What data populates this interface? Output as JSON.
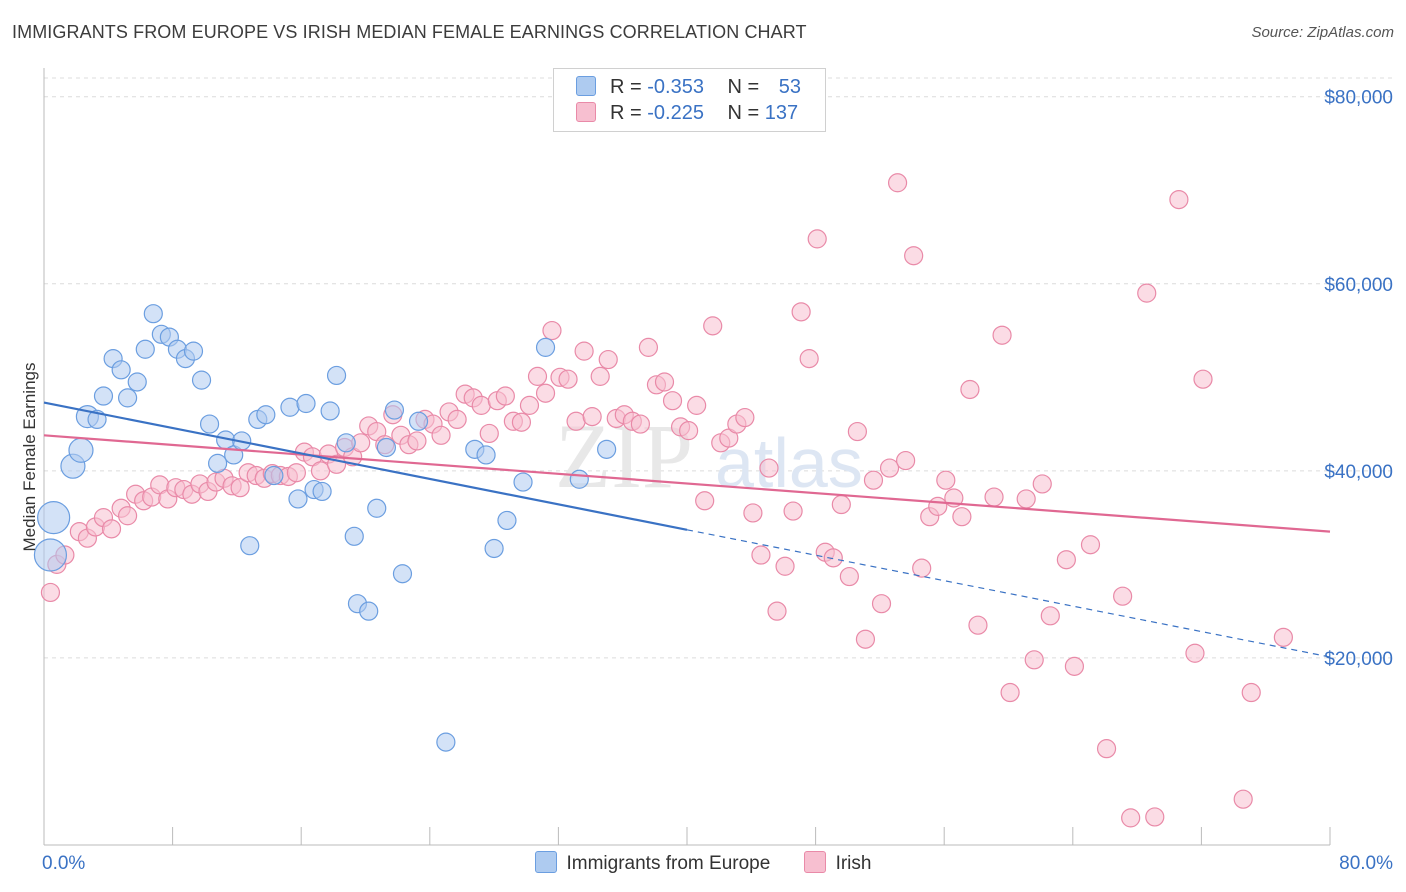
{
  "header": {
    "title": "IMMIGRANTS FROM EUROPE VS IRISH MEDIAN FEMALE EARNINGS CORRELATION CHART",
    "source": "Source: ZipAtlas.com"
  },
  "legend": {
    "rows": [
      {
        "r_label": "R =",
        "r_value": "-0.353",
        "n_label": "N =",
        "n_value": "53"
      },
      {
        "r_label": "R =",
        "r_value": "-0.225",
        "n_label": "N =",
        "n_value": "137"
      }
    ]
  },
  "colors": {
    "blue_fill": "#aecbf0",
    "blue_stroke": "#6b9ee0",
    "blue_line": "#3a72c4",
    "pink_fill": "#f7bfd0",
    "pink_stroke": "#e98aa8",
    "pink_line": "#e06892",
    "axis_label": "#3a72c4",
    "grid": "#dcdcdc"
  },
  "chart_data": {
    "type": "scatter",
    "title": "IMMIGRANTS FROM EUROPE VS IRISH MEDIAN FEMALE EARNINGS CORRELATION CHART",
    "xlabel": "",
    "ylabel": "Median Female Earnings",
    "xlim": [
      0,
      80
    ],
    "ylim": [
      0,
      82000
    ],
    "x_tick_labels": [
      "0.0%",
      "80.0%"
    ],
    "y_ticks": [
      20000,
      40000,
      60000,
      80000
    ],
    "y_tick_labels": [
      "$20,000",
      "$40,000",
      "$60,000",
      "$80,000"
    ],
    "grid": true,
    "legend_position": "top-center",
    "series": [
      {
        "name": "Immigrants from Europe",
        "color": "blue",
        "r": "-0.353",
        "n": "53",
        "trend": {
          "x0": 0,
          "y0": 47300,
          "x1": 40,
          "y1": 33700,
          "dashed_to_x": 80,
          "dashed_to_y": 20100
        },
        "points": [
          [
            0.6,
            35000,
            16
          ],
          [
            0.4,
            31000,
            16
          ],
          [
            1.8,
            40500,
            12
          ],
          [
            2.3,
            42200,
            12
          ],
          [
            2.7,
            45800,
            11
          ],
          [
            3.3,
            45500,
            9
          ],
          [
            3.7,
            48000,
            9
          ],
          [
            4.3,
            52000,
            9
          ],
          [
            4.8,
            50800,
            9
          ],
          [
            5.2,
            47800,
            9
          ],
          [
            5.8,
            49500,
            9
          ],
          [
            6.3,
            53000,
            9
          ],
          [
            6.8,
            56800,
            9
          ],
          [
            7.3,
            54600,
            9
          ],
          [
            7.8,
            54300,
            9
          ],
          [
            8.3,
            53000,
            9
          ],
          [
            8.8,
            52000,
            9
          ],
          [
            9.3,
            52800,
            9
          ],
          [
            9.8,
            49700,
            9
          ],
          [
            10.3,
            45000,
            9
          ],
          [
            10.8,
            40800,
            9
          ],
          [
            11.3,
            43300,
            9
          ],
          [
            11.8,
            41700,
            9
          ],
          [
            12.3,
            43200,
            9
          ],
          [
            12.8,
            32000,
            9
          ],
          [
            13.3,
            45500,
            9
          ],
          [
            13.8,
            46000,
            9
          ],
          [
            14.3,
            39500,
            9
          ],
          [
            15.3,
            46800,
            9
          ],
          [
            15.8,
            37000,
            9
          ],
          [
            16.3,
            47200,
            9
          ],
          [
            16.8,
            38000,
            9
          ],
          [
            17.3,
            37800,
            9
          ],
          [
            17.8,
            46400,
            9
          ],
          [
            18.2,
            50200,
            9
          ],
          [
            18.8,
            43000,
            9
          ],
          [
            19.3,
            33000,
            9
          ],
          [
            19.5,
            25800,
            9
          ],
          [
            20.2,
            25000,
            9
          ],
          [
            20.7,
            36000,
            9
          ],
          [
            21.3,
            42500,
            9
          ],
          [
            21.8,
            46500,
            9
          ],
          [
            22.3,
            29000,
            9
          ],
          [
            23.3,
            45300,
            9
          ],
          [
            25.0,
            11000,
            9
          ],
          [
            26.8,
            42300,
            9
          ],
          [
            27.5,
            41700,
            9
          ],
          [
            28.0,
            31700,
            9
          ],
          [
            28.8,
            34700,
            9
          ],
          [
            29.8,
            38800,
            9
          ],
          [
            31.2,
            53200,
            9
          ],
          [
            33.3,
            39100,
            9
          ],
          [
            35.0,
            42300,
            9
          ]
        ]
      },
      {
        "name": "Irish",
        "color": "pink",
        "r": "-0.225",
        "n": "137",
        "trend": {
          "x0": 0,
          "y0": 43800,
          "x1": 80,
          "y1": 33500
        },
        "points": [
          [
            0.4,
            27000,
            9
          ],
          [
            0.8,
            30000,
            9
          ],
          [
            1.3,
            31000,
            9
          ],
          [
            2.2,
            33500,
            9
          ],
          [
            2.7,
            32800,
            9
          ],
          [
            3.2,
            34000,
            9
          ],
          [
            3.7,
            35000,
            9
          ],
          [
            4.2,
            33800,
            9
          ],
          [
            4.8,
            36000,
            9
          ],
          [
            5.2,
            35200,
            9
          ],
          [
            5.7,
            37500,
            9
          ],
          [
            6.2,
            36800,
            9
          ],
          [
            6.7,
            37200,
            9
          ],
          [
            7.2,
            38500,
            9
          ],
          [
            7.7,
            37000,
            9
          ],
          [
            8.2,
            38200,
            9
          ],
          [
            8.7,
            38000,
            9
          ],
          [
            9.2,
            37500,
            9
          ],
          [
            9.7,
            38600,
            9
          ],
          [
            10.2,
            37800,
            9
          ],
          [
            10.7,
            38800,
            9
          ],
          [
            11.2,
            39200,
            9
          ],
          [
            11.7,
            38400,
            9
          ],
          [
            12.2,
            38200,
            9
          ],
          [
            12.7,
            39800,
            9
          ],
          [
            13.2,
            39500,
            9
          ],
          [
            13.7,
            39200,
            9
          ],
          [
            14.2,
            39700,
            9
          ],
          [
            14.7,
            39500,
            9
          ],
          [
            15.2,
            39400,
            9
          ],
          [
            15.7,
            39800,
            9
          ],
          [
            16.2,
            42000,
            9
          ],
          [
            16.7,
            41500,
            9
          ],
          [
            17.2,
            40000,
            9
          ],
          [
            17.7,
            41800,
            9
          ],
          [
            18.2,
            40700,
            9
          ],
          [
            18.7,
            42500,
            9
          ],
          [
            19.2,
            41500,
            9
          ],
          [
            19.7,
            43000,
            9
          ],
          [
            20.2,
            44800,
            9
          ],
          [
            20.7,
            44200,
            9
          ],
          [
            21.2,
            42800,
            9
          ],
          [
            21.7,
            46000,
            9
          ],
          [
            22.2,
            43800,
            9
          ],
          [
            22.7,
            42800,
            9
          ],
          [
            23.2,
            43200,
            9
          ],
          [
            23.7,
            45500,
            9
          ],
          [
            24.2,
            45000,
            9
          ],
          [
            24.7,
            43800,
            9
          ],
          [
            25.2,
            46300,
            9
          ],
          [
            25.7,
            45500,
            9
          ],
          [
            26.2,
            48200,
            9
          ],
          [
            26.7,
            47800,
            9
          ],
          [
            27.2,
            47000,
            9
          ],
          [
            27.7,
            44000,
            9
          ],
          [
            28.2,
            47500,
            9
          ],
          [
            28.7,
            48000,
            9
          ],
          [
            29.2,
            45300,
            9
          ],
          [
            29.7,
            45200,
            9
          ],
          [
            30.2,
            47000,
            9
          ],
          [
            30.7,
            50100,
            9
          ],
          [
            31.2,
            48300,
            9
          ],
          [
            31.6,
            55000,
            9
          ],
          [
            32.1,
            50000,
            9
          ],
          [
            32.6,
            49800,
            9
          ],
          [
            33.1,
            45300,
            9
          ],
          [
            33.6,
            52800,
            9
          ],
          [
            34.1,
            45800,
            9
          ],
          [
            34.6,
            50100,
            9
          ],
          [
            35.1,
            51900,
            9
          ],
          [
            35.6,
            45600,
            9
          ],
          [
            36.1,
            46000,
            9
          ],
          [
            36.6,
            45300,
            9
          ],
          [
            37.1,
            45000,
            9
          ],
          [
            37.6,
            53200,
            9
          ],
          [
            38.1,
            49200,
            9
          ],
          [
            38.6,
            49500,
            9
          ],
          [
            39.1,
            47500,
            9
          ],
          [
            39.6,
            44700,
            9
          ],
          [
            40.1,
            44300,
            9
          ],
          [
            40.6,
            47000,
            9
          ],
          [
            41.1,
            36800,
            9
          ],
          [
            41.6,
            55500,
            9
          ],
          [
            42.1,
            43000,
            9
          ],
          [
            42.6,
            43500,
            9
          ],
          [
            43.1,
            45000,
            9
          ],
          [
            43.6,
            45700,
            9
          ],
          [
            44.1,
            35500,
            9
          ],
          [
            44.6,
            31000,
            9
          ],
          [
            45.1,
            40300,
            9
          ],
          [
            45.6,
            25000,
            9
          ],
          [
            46.1,
            29800,
            9
          ],
          [
            46.6,
            35700,
            9
          ],
          [
            47.1,
            57000,
            9
          ],
          [
            47.6,
            52000,
            9
          ],
          [
            48.1,
            64800,
            9
          ],
          [
            48.6,
            31300,
            9
          ],
          [
            49.1,
            30700,
            9
          ],
          [
            49.6,
            36400,
            9
          ],
          [
            50.1,
            28700,
            9
          ],
          [
            50.6,
            44200,
            9
          ],
          [
            51.1,
            22000,
            9
          ],
          [
            51.6,
            39000,
            9
          ],
          [
            52.1,
            25800,
            9
          ],
          [
            52.6,
            40300,
            9
          ],
          [
            53.1,
            70800,
            9
          ],
          [
            53.6,
            41100,
            9
          ],
          [
            54.1,
            63000,
            9
          ],
          [
            54.6,
            29600,
            9
          ],
          [
            55.1,
            35100,
            9
          ],
          [
            55.6,
            36200,
            9
          ],
          [
            56.1,
            39000,
            9
          ],
          [
            56.6,
            37100,
            9
          ],
          [
            57.1,
            35100,
            9
          ],
          [
            57.6,
            48700,
            9
          ],
          [
            58.1,
            23500,
            9
          ],
          [
            59.1,
            37200,
            9
          ],
          [
            59.6,
            54500,
            9
          ],
          [
            60.1,
            16300,
            9
          ],
          [
            61.1,
            37000,
            9
          ],
          [
            61.6,
            19800,
            9
          ],
          [
            62.1,
            38600,
            9
          ],
          [
            62.6,
            24500,
            9
          ],
          [
            63.6,
            30500,
            9
          ],
          [
            64.1,
            19100,
            9
          ],
          [
            65.1,
            32100,
            9
          ],
          [
            66.1,
            10300,
            9
          ],
          [
            67.1,
            26600,
            9
          ],
          [
            67.6,
            2900,
            9
          ],
          [
            68.6,
            59000,
            9
          ],
          [
            69.1,
            3000,
            9
          ],
          [
            70.6,
            69000,
            9
          ],
          [
            71.6,
            20500,
            9
          ],
          [
            72.1,
            49800,
            9
          ],
          [
            74.6,
            4900,
            9
          ],
          [
            75.1,
            16300,
            9
          ],
          [
            77.1,
            22200,
            9
          ]
        ]
      }
    ]
  },
  "bottom_legend": {
    "items": [
      {
        "label": "Immigrants from Europe"
      },
      {
        "label": "Irish"
      }
    ]
  }
}
